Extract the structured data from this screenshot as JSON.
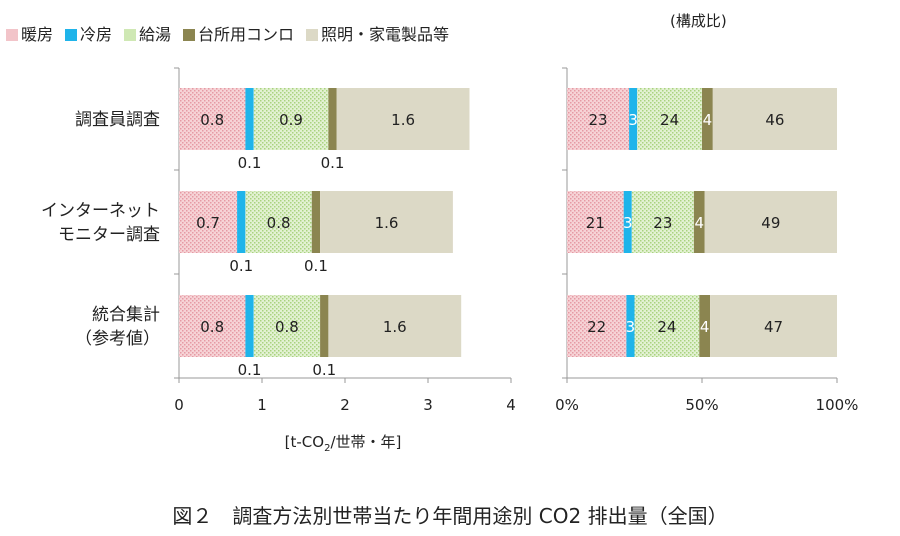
{
  "caption": "図２　調査方法別世帯当たり年間用途別 CO2 排出量（全国）",
  "chart_data": [
    {
      "type": "bar",
      "orientation": "horizontal",
      "stacked": true,
      "categories": [
        "調査員調査",
        "インターネット\nモニター調査",
        "統合集計\n（参考値）"
      ],
      "series": [
        {
          "name": "暖房",
          "values": [
            0.8,
            0.7,
            0.8
          ]
        },
        {
          "name": "冷房",
          "values": [
            0.1,
            0.1,
            0.1
          ]
        },
        {
          "name": "給湯",
          "values": [
            0.9,
            0.8,
            0.8
          ]
        },
        {
          "name": "台所用コンロ",
          "values": [
            0.1,
            0.1,
            0.1
          ]
        },
        {
          "name": "照明・家電製品等",
          "values": [
            1.6,
            1.6,
            1.6
          ]
        }
      ],
      "xlabel": "[t-CO2/世帯・年]",
      "xlim": [
        0,
        4
      ],
      "xticks": [
        0,
        1,
        2,
        3,
        4
      ],
      "legend": "top"
    },
    {
      "type": "bar",
      "orientation": "horizontal",
      "stacked": true,
      "percent": true,
      "title": "(構成比)",
      "categories": [
        "調査員調査",
        "インターネット\nモニター調査",
        "統合集計\n（参考値）"
      ],
      "series": [
        {
          "name": "暖房",
          "values": [
            23,
            21,
            22
          ]
        },
        {
          "name": "冷房",
          "values": [
            3,
            3,
            3
          ]
        },
        {
          "name": "給湯",
          "values": [
            24,
            23,
            24
          ]
        },
        {
          "name": "台所用コンロ",
          "values": [
            4,
            4,
            4
          ]
        },
        {
          "name": "照明・家電製品等",
          "values": [
            46,
            49,
            47
          ]
        }
      ],
      "xlim": [
        0,
        100
      ],
      "xticks": [
        "0%",
        "50%",
        "100%"
      ]
    }
  ],
  "colors": {
    "暖房": "#f2c4c9",
    "冷房": "#1fb4ea",
    "給湯": "#cfe8b4",
    "台所用コンロ": "#8b8550",
    "照明・家電製品等": "#dcd9c6",
    "axis": "#999999",
    "text": "#222222"
  }
}
